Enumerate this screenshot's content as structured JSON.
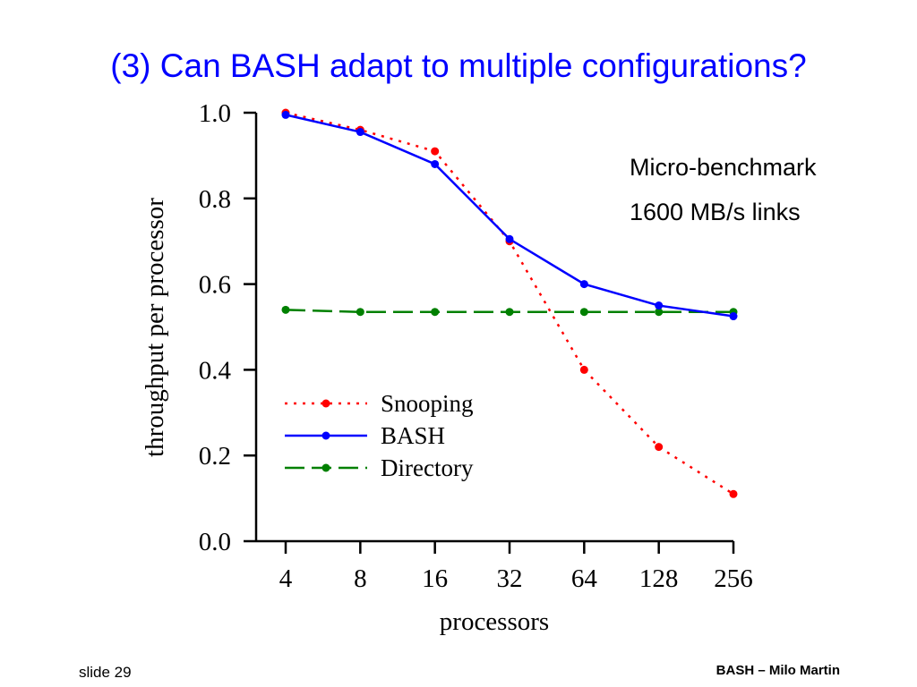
{
  "slide": {
    "title": "(3) Can BASH adapt to multiple configurations?",
    "annotations": [
      "Micro-benchmark",
      "1600 MB/s links"
    ],
    "footer_left": "slide 29",
    "footer_right": "BASH – Milo Martin"
  },
  "chart_data": {
    "type": "line",
    "categories": [
      "4",
      "8",
      "16",
      "32",
      "64",
      "128",
      "256"
    ],
    "xlabel": "processors",
    "ylabel": "throughput per processor",
    "ylim": [
      0,
      1
    ],
    "yticks": [
      "0.0",
      "0.2",
      "0.4",
      "0.6",
      "0.8",
      "1.0"
    ],
    "legend_position": "lower-left",
    "grid": false,
    "series": [
      {
        "name": "Snooping",
        "values": [
          1.0,
          0.96,
          0.91,
          0.7,
          0.4,
          0.22,
          0.11
        ],
        "color": "#ff0000",
        "style": "dotted"
      },
      {
        "name": "BASH",
        "values": [
          0.995,
          0.955,
          0.88,
          0.705,
          0.6,
          0.55,
          0.525
        ],
        "color": "#0000ff",
        "style": "solid"
      },
      {
        "name": "Directory",
        "values": [
          0.54,
          0.535,
          0.535,
          0.535,
          0.535,
          0.535,
          0.535
        ],
        "color": "#008000",
        "style": "dashed"
      }
    ]
  }
}
